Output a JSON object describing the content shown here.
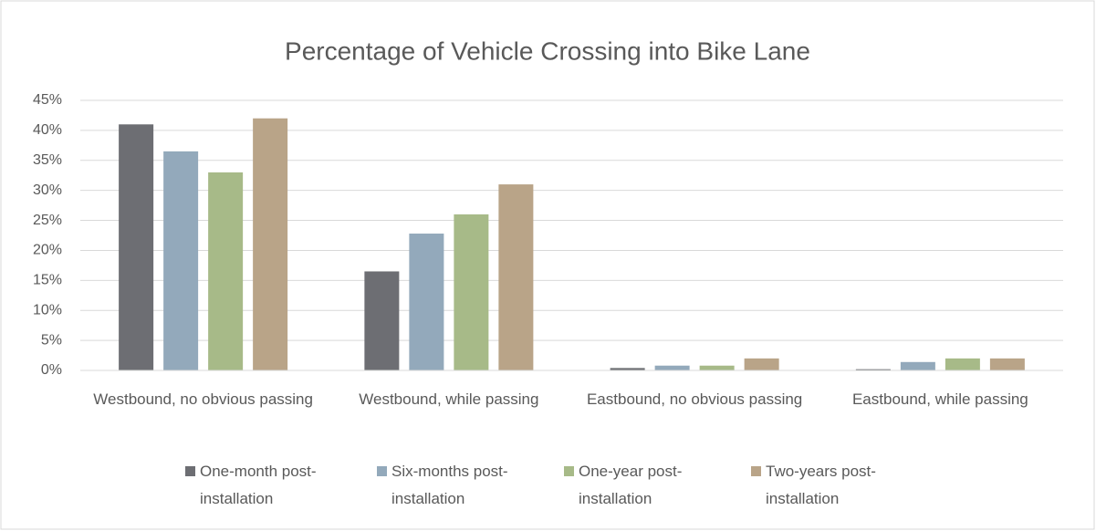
{
  "chart_data": {
    "type": "bar",
    "title": "Percentage of Vehicle Crossing into Bike Lane",
    "categories": [
      "Westbound, no obvious passing",
      "Westbound,  while passing",
      "Eastbound, no obvious passing",
      "Eastbound,  while passing"
    ],
    "series": [
      {
        "name": "One-month post-installation",
        "color": "#6d6e73",
        "values": [
          41,
          16.5,
          0.4,
          0.2
        ]
      },
      {
        "name": "Six-months post-installation",
        "color": "#93a9bb",
        "values": [
          36.5,
          22.8,
          0.8,
          1.4
        ]
      },
      {
        "name": "One-year post-installation",
        "color": "#a7ba88",
        "values": [
          33,
          26,
          0.8,
          2
        ]
      },
      {
        "name": "Two-years post-installation",
        "color": "#b9a488",
        "values": [
          42,
          31,
          2,
          2
        ]
      }
    ],
    "ylim": [
      0,
      45
    ],
    "yticks": [
      {
        "value": 0,
        "label": "0%"
      },
      {
        "value": 5,
        "label": "5%"
      },
      {
        "value": 10,
        "label": "10%"
      },
      {
        "value": 15,
        "label": "15%"
      },
      {
        "value": 20,
        "label": "20%"
      },
      {
        "value": 25,
        "label": "25%"
      },
      {
        "value": 30,
        "label": "30%"
      },
      {
        "value": 35,
        "label": "35%"
      },
      {
        "value": 40,
        "label": "40%"
      },
      {
        "value": 45,
        "label": "45%"
      }
    ],
    "grid": true,
    "legend": "bottom"
  }
}
